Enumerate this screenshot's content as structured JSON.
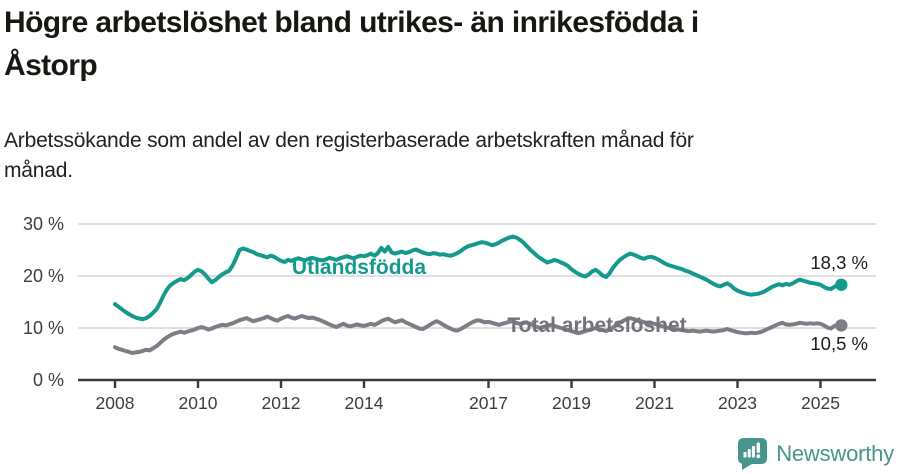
{
  "header": {
    "title_lines": [
      "Högre arbetslöshet bland utrikes- än inrikesfödda i",
      "Åstorp"
    ],
    "subtitle_lines": [
      "Arbetssökande som andel av den registerbaserade arbetskraften månad för",
      "månad."
    ]
  },
  "chart_data": {
    "type": "line",
    "unit": "percent of labour force",
    "frequency": "monthly",
    "x_start_year": 2008,
    "x_start_month": 1,
    "x_tick_years": [
      2008,
      2010,
      2012,
      2014,
      2017,
      2019,
      2021,
      2023,
      2025
    ],
    "y_ticks": [
      {
        "value": 0,
        "label": "0 %"
      },
      {
        "value": 10,
        "label": "10 %"
      },
      {
        "value": 20,
        "label": "20 %"
      },
      {
        "value": 30,
        "label": "30 %"
      }
    ],
    "ylim": [
      0,
      30
    ],
    "grid": "horizontal",
    "colors": {
      "axis": "#3A3A3A",
      "grid": "#D6D6D6",
      "tick_text": "#3D3D3D",
      "value_text": "#1B1B1B"
    },
    "series": [
      {
        "name": "Utlandsfödda",
        "color": "#149A8D",
        "label_color": "#149A8D",
        "end_value_label": "18,3 %",
        "values": [
          14.6,
          14.1,
          13.6,
          13.1,
          12.7,
          12.3,
          12.0,
          11.8,
          11.7,
          11.9,
          12.3,
          12.9,
          13.6,
          14.8,
          16.2,
          17.4,
          18.2,
          18.7,
          19.1,
          19.4,
          19.2,
          19.6,
          20.2,
          20.8,
          21.2,
          20.9,
          20.3,
          19.5,
          18.8,
          19.2,
          19.8,
          20.3,
          20.7,
          21.0,
          22.0,
          23.4,
          25.0,
          25.3,
          25.1,
          24.8,
          24.6,
          24.2,
          24.0,
          23.8,
          23.6,
          23.9,
          23.7,
          23.3,
          22.9,
          22.7,
          23.1,
          22.9,
          23.2,
          23.4,
          23.2,
          23.0,
          23.3,
          23.5,
          23.3,
          23.1,
          23.0,
          23.2,
          23.5,
          23.3,
          23.1,
          23.4,
          23.6,
          23.8,
          23.6,
          23.4,
          23.7,
          23.9,
          23.8,
          24.0,
          24.3,
          23.9,
          24.4,
          25.4,
          24.7,
          25.6,
          24.5,
          24.3,
          24.5,
          24.7,
          24.4,
          24.6,
          24.9,
          25.1,
          24.8,
          24.5,
          24.3,
          24.2,
          24.4,
          24.3,
          24.1,
          24.2,
          24.0,
          23.9,
          24.1,
          24.4,
          24.8,
          25.3,
          25.7,
          25.9,
          26.1,
          26.3,
          26.5,
          26.4,
          26.2,
          25.9,
          26.1,
          26.4,
          26.8,
          27.1,
          27.4,
          27.6,
          27.4,
          27.0,
          26.5,
          25.8,
          25.1,
          24.5,
          23.9,
          23.4,
          23.0,
          22.6,
          22.8,
          23.1,
          22.9,
          22.6,
          22.3,
          21.9,
          21.3,
          20.8,
          20.4,
          20.1,
          19.9,
          20.3,
          20.9,
          21.2,
          20.7,
          20.1,
          19.8,
          20.5,
          21.6,
          22.4,
          23.1,
          23.6,
          24.0,
          24.3,
          24.1,
          23.8,
          23.5,
          23.3,
          23.6,
          23.7,
          23.5,
          23.2,
          22.8,
          22.4,
          22.1,
          21.9,
          21.7,
          21.5,
          21.3,
          21.0,
          20.8,
          20.5,
          20.2,
          19.9,
          19.6,
          19.3,
          18.9,
          18.5,
          18.2,
          18.0,
          18.3,
          18.6,
          18.2,
          17.6,
          17.2,
          16.9,
          16.7,
          16.5,
          16.4,
          16.5,
          16.6,
          16.8,
          17.1,
          17.5,
          17.9,
          18.2,
          18.4,
          18.2,
          18.5,
          18.3,
          18.6,
          19.0,
          19.3,
          19.1,
          18.9,
          18.7,
          18.6,
          18.5,
          18.3,
          17.9,
          17.6,
          17.5,
          17.9,
          18.3,
          18.3
        ]
      },
      {
        "name": "Total arbetslöshet",
        "color": "#7E7D85",
        "label_color": "#73727A",
        "end_value_label": "10,5 %",
        "values": [
          6.3,
          6.0,
          5.8,
          5.6,
          5.4,
          5.2,
          5.3,
          5.4,
          5.6,
          5.8,
          5.7,
          6.1,
          6.5,
          7.1,
          7.7,
          8.2,
          8.6,
          8.9,
          9.1,
          9.3,
          9.1,
          9.3,
          9.5,
          9.7,
          10.0,
          10.2,
          10.0,
          9.7,
          9.9,
          10.2,
          10.4,
          10.6,
          10.5,
          10.7,
          10.9,
          11.2,
          11.5,
          11.7,
          11.9,
          11.6,
          11.3,
          11.5,
          11.7,
          11.9,
          12.2,
          11.9,
          11.6,
          11.4,
          11.8,
          12.1,
          12.3,
          12.0,
          11.8,
          12.1,
          12.3,
          12.1,
          11.9,
          12.0,
          11.8,
          11.6,
          11.3,
          11.0,
          10.7,
          10.4,
          10.2,
          10.5,
          10.8,
          10.5,
          10.3,
          10.5,
          10.7,
          10.5,
          10.4,
          10.6,
          10.8,
          10.6,
          10.9,
          11.3,
          11.6,
          11.8,
          11.4,
          11.1,
          11.3,
          11.5,
          11.1,
          10.8,
          10.5,
          10.2,
          9.9,
          9.8,
          10.2,
          10.6,
          11.0,
          11.3,
          11.0,
          10.6,
          10.2,
          9.9,
          9.6,
          9.5,
          9.8,
          10.2,
          10.6,
          11.0,
          11.3,
          11.5,
          11.3,
          11.1,
          11.2,
          11.0,
          10.8,
          10.6,
          10.8,
          11.0,
          11.2,
          11.3,
          11.0,
          10.8,
          10.9,
          11.1,
          10.8,
          10.5,
          10.2,
          10.0,
          10.2,
          10.4,
          10.6,
          10.4,
          10.2,
          10.0,
          9.8,
          9.6,
          9.4,
          9.2,
          9.0,
          9.2,
          9.4,
          9.6,
          9.8,
          10.0,
          9.8,
          9.6,
          9.4,
          9.7,
          10.1,
          10.6,
          11.0,
          11.4,
          11.7,
          11.9,
          11.7,
          11.5,
          11.3,
          11.1,
          11.0,
          10.9,
          10.8,
          10.6,
          10.4,
          10.2,
          10.0,
          9.9,
          9.8,
          9.7,
          9.6,
          9.5,
          9.4,
          9.5,
          9.4,
          9.3,
          9.4,
          9.5,
          9.4,
          9.3,
          9.4,
          9.5,
          9.6,
          9.8,
          9.6,
          9.4,
          9.2,
          9.1,
          9.0,
          9.0,
          9.1,
          9.0,
          9.1,
          9.3,
          9.6,
          9.9,
          10.2,
          10.5,
          10.8,
          11.0,
          10.7,
          10.6,
          10.7,
          10.8,
          11.0,
          10.9,
          10.8,
          10.9,
          10.8,
          10.9,
          10.8,
          10.5,
          10.1,
          9.9,
          10.4,
          10.6,
          10.5
        ]
      }
    ]
  },
  "footer": {
    "brand": "Newsworthy",
    "brand_color": "#46968E"
  }
}
